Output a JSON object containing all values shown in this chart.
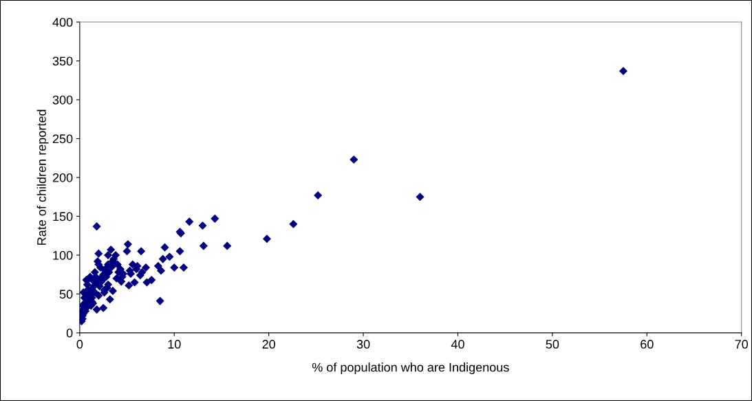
{
  "chart_data": {
    "type": "scatter",
    "xlabel": "% of population who are Indigenous",
    "ylabel": "Rate of children reported",
    "xlim": [
      0,
      70
    ],
    "xticks": [
      0,
      10,
      20,
      30,
      40,
      50,
      60,
      70
    ],
    "ylim": [
      0,
      400
    ],
    "yticks": [
      0,
      50,
      100,
      150,
      200,
      250,
      300,
      350,
      400
    ],
    "marker": "diamond",
    "grid": false,
    "legend": false,
    "series": [
      {
        "color": "#000080",
        "x": [
          57.5,
          29,
          25.2,
          36,
          22.6,
          19.8,
          15.6,
          14.3,
          13.1,
          13,
          11.6,
          10.6,
          10.7,
          11,
          10.6,
          10,
          9.5,
          9,
          8.8,
          8.6,
          8.5,
          8.3,
          7.6,
          7.1,
          7.0,
          6.5,
          6.4,
          6.1,
          5.8,
          5.6,
          5.4,
          5.2,
          5.1,
          5.0,
          1.8,
          2.0,
          3.3,
          4.0,
          3.8,
          4.3,
          4.5,
          3.6,
          3.0,
          2.7,
          2.5,
          2.2,
          1.9,
          1.5,
          1.2,
          1.0,
          0.8,
          0.5,
          0.3,
          0.2,
          0.1,
          0.4,
          0.9,
          1.3,
          1.6,
          2.1,
          2.4,
          2.8,
          3.1,
          3.4,
          3.7,
          4.1,
          4.6,
          5.3,
          6.0,
          6.6,
          3.2,
          2.6,
          1.4,
          0.7,
          0.5,
          0.3,
          0.2,
          0.8,
          1.0,
          1.7,
          2.3,
          2.9,
          3.5,
          0.6,
          1.2,
          1.8,
          2.5,
          3.0,
          0.4,
          0.9,
          1.5,
          2.0,
          2.7,
          3.3,
          1.1,
          1.6,
          2.2,
          0.7,
          0.3,
          1.3,
          2.0,
          2.6,
          3.9,
          4.4,
          3.0,
          1.9
        ],
        "values": [
          337,
          223,
          177,
          175,
          140,
          121,
          112,
          147,
          112,
          138,
          143,
          130,
          128,
          84,
          105,
          84,
          98,
          110,
          95,
          80,
          41,
          86,
          68,
          65,
          84,
          105,
          74,
          86,
          65,
          88,
          76,
          61,
          114,
          105,
          137,
          102,
          107,
          88,
          100,
          82,
          72,
          95,
          88,
          80,
          75,
          70,
          65,
          60,
          55,
          50,
          48,
          45,
          35,
          28,
          20,
          25,
          40,
          45,
          52,
          60,
          68,
          72,
          78,
          85,
          90,
          78,
          76,
          80,
          82,
          78,
          43,
          55,
          38,
          32,
          38,
          22,
          15,
          62,
          70,
          72,
          66,
          58,
          54,
          28,
          35,
          30,
          32,
          62,
          52,
          56,
          66,
          88,
          82,
          90,
          72,
          78,
          84,
          68,
          18,
          40,
          48,
          52,
          70,
          66,
          100,
          92
        ]
      }
    ]
  }
}
